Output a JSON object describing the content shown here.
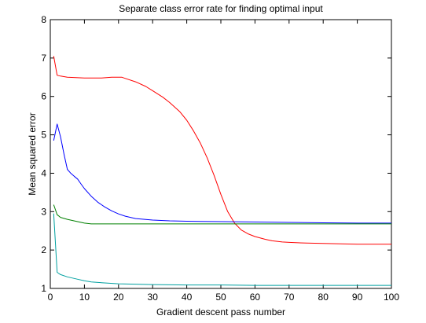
{
  "chart_data": {
    "type": "line",
    "title": "Separate class error rate for finding optimal input",
    "xlabel": "Gradient descent pass number",
    "ylabel": "Mean squared error",
    "xlim": [
      0,
      100
    ],
    "ylim": [
      1,
      8
    ],
    "xticks": [
      0,
      10,
      20,
      30,
      40,
      50,
      60,
      70,
      80,
      90,
      100
    ],
    "yticks": [
      1,
      2,
      3,
      4,
      5,
      6,
      7,
      8
    ],
    "grid": false,
    "legend": "none",
    "series": [
      {
        "color": "#ff0000",
        "x": [
          1,
          2,
          3,
          5,
          10,
          15,
          18,
          20,
          21,
          22,
          25,
          28,
          30,
          33,
          35,
          38,
          40,
          42,
          44,
          46,
          48,
          50,
          52,
          54,
          56,
          58,
          60,
          63,
          65,
          68,
          70,
          75,
          80,
          85,
          90,
          95,
          100
        ],
        "y": [
          7.05,
          6.55,
          6.53,
          6.5,
          6.48,
          6.48,
          6.5,
          6.5,
          6.5,
          6.47,
          6.38,
          6.26,
          6.15,
          5.98,
          5.84,
          5.6,
          5.38,
          5.1,
          4.78,
          4.4,
          3.95,
          3.45,
          3.0,
          2.7,
          2.52,
          2.42,
          2.35,
          2.28,
          2.24,
          2.21,
          2.2,
          2.18,
          2.17,
          2.16,
          2.15,
          2.15,
          2.15
        ]
      },
      {
        "color": "#0000ff",
        "x": [
          1,
          2,
          3,
          4,
          5,
          6,
          7,
          8,
          9,
          10,
          12,
          14,
          16,
          18,
          20,
          22,
          25,
          30,
          35,
          40,
          50,
          60,
          70,
          80,
          90,
          100
        ],
        "y": [
          4.85,
          5.28,
          4.95,
          4.5,
          4.1,
          4.0,
          3.92,
          3.85,
          3.72,
          3.6,
          3.4,
          3.24,
          3.12,
          3.02,
          2.94,
          2.88,
          2.82,
          2.78,
          2.76,
          2.75,
          2.74,
          2.73,
          2.72,
          2.71,
          2.7,
          2.7
        ]
      },
      {
        "color": "#008000",
        "x": [
          1,
          2,
          3,
          5,
          8,
          10,
          12,
          15,
          20,
          30,
          40,
          50,
          60,
          70,
          80,
          90,
          100
        ],
        "y": [
          3.18,
          2.92,
          2.85,
          2.8,
          2.74,
          2.7,
          2.68,
          2.68,
          2.68,
          2.68,
          2.68,
          2.68,
          2.68,
          2.68,
          2.68,
          2.68,
          2.68
        ]
      },
      {
        "color": "#00a0a0",
        "x": [
          1,
          2,
          3,
          5,
          8,
          10,
          12,
          15,
          20,
          25,
          30,
          40,
          50,
          60,
          70,
          80,
          90,
          100
        ],
        "y": [
          2.95,
          1.42,
          1.36,
          1.3,
          1.24,
          1.2,
          1.17,
          1.15,
          1.12,
          1.11,
          1.1,
          1.09,
          1.09,
          1.08,
          1.08,
          1.08,
          1.08,
          1.08
        ]
      }
    ]
  }
}
